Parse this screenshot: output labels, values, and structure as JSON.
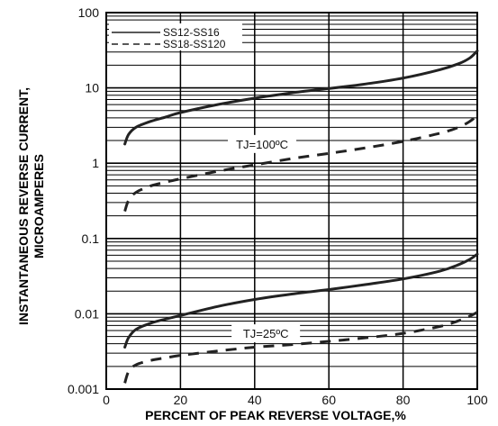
{
  "chart_data": {
    "type": "line",
    "xlabel": "PERCENT OF PEAK REVERSE VOLTAGE,%",
    "ylabel_lines": [
      "INSTANTANEOUS REVERSE CURRENT,",
      "MICROAMPERES"
    ],
    "x_scale": "linear",
    "y_scale": "log",
    "xlim": [
      0,
      100
    ],
    "ylim": [
      0.001,
      100
    ],
    "x_ticks": [
      {
        "value": 0,
        "label": "0"
      },
      {
        "value": 20,
        "label": "20"
      },
      {
        "value": 40,
        "label": "40"
      },
      {
        "value": 60,
        "label": "60"
      },
      {
        "value": 80,
        "label": "80"
      },
      {
        "value": 100,
        "label": "100"
      }
    ],
    "y_ticks": [
      {
        "value": 0.001,
        "label": "0.001"
      },
      {
        "value": 0.01,
        "label": "0.01"
      },
      {
        "value": 0.1,
        "label": "0.1"
      },
      {
        "value": 1,
        "label": "1"
      },
      {
        "value": 10,
        "label": "10"
      },
      {
        "value": 100,
        "label": "100"
      }
    ],
    "grid": true,
    "legend_position": "top-left",
    "legend": [
      {
        "label": "SS12-SS16",
        "style": "solid"
      },
      {
        "label": "SS18-SS120",
        "style": "dashed"
      }
    ],
    "annotations": [
      {
        "text": "TJ=100ºC",
        "x": 42,
        "y": 1.8
      },
      {
        "text": "TJ=25ºC",
        "x": 43,
        "y": 0.0055
      }
    ],
    "series": [
      {
        "style": "solid",
        "x": [
          5,
          6,
          8,
          12,
          16,
          20,
          30,
          40,
          50,
          60,
          70,
          80,
          90,
          95,
          98,
          100
        ],
        "y": [
          1.8,
          2.4,
          3.0,
          3.6,
          4.1,
          4.7,
          6.0,
          7.3,
          8.6,
          9.8,
          11.3,
          13.5,
          17.5,
          21,
          25,
          31
        ]
      },
      {
        "style": "dashed",
        "x": [
          5,
          6,
          8,
          12,
          16,
          20,
          30,
          40,
          50,
          60,
          70,
          80,
          90,
          95,
          98,
          100
        ],
        "y": [
          0.23,
          0.32,
          0.41,
          0.5,
          0.56,
          0.62,
          0.78,
          0.95,
          1.15,
          1.35,
          1.6,
          1.95,
          2.5,
          3.0,
          3.6,
          4.3
        ]
      },
      {
        "style": "solid",
        "x": [
          5,
          6,
          8,
          12,
          16,
          20,
          30,
          40,
          50,
          60,
          70,
          80,
          90,
          95,
          98,
          100
        ],
        "y": [
          0.0036,
          0.0048,
          0.0062,
          0.0075,
          0.0085,
          0.0095,
          0.0125,
          0.0155,
          0.0183,
          0.021,
          0.0245,
          0.029,
          0.037,
          0.045,
          0.053,
          0.062
        ]
      },
      {
        "style": "dashed",
        "x": [
          5,
          6,
          8,
          12,
          16,
          20,
          30,
          40,
          50,
          60,
          70,
          80,
          90,
          95,
          98,
          100
        ],
        "y": [
          0.0012,
          0.0017,
          0.0021,
          0.0024,
          0.0026,
          0.0028,
          0.0032,
          0.0036,
          0.0039,
          0.0043,
          0.0048,
          0.0055,
          0.0068,
          0.0081,
          0.0093,
          0.0105
        ]
      }
    ]
  }
}
